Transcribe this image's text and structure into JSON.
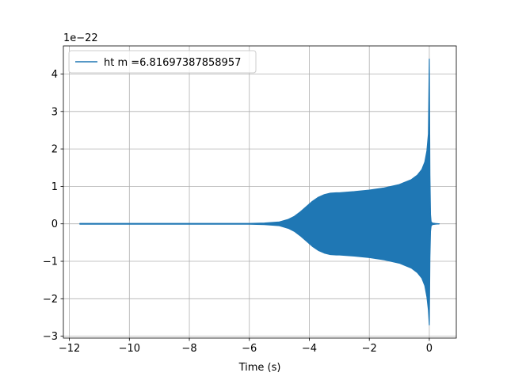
{
  "chart_data": {
    "type": "line",
    "title": "",
    "xlabel": "Time (s)",
    "ylabel": "",
    "y_scale_label": "1e−22",
    "xlim": [
      -12.2,
      0.9
    ],
    "ylim": [
      -3.05,
      4.75
    ],
    "x_ticks": [
      -12,
      -10,
      -8,
      -6,
      -4,
      -2,
      0
    ],
    "x_tick_labels": [
      "−12",
      "−10",
      "−8",
      "−6",
      "−4",
      "−2",
      "0"
    ],
    "y_ticks": [
      -3,
      -2,
      -1,
      0,
      1,
      2,
      3,
      4
    ],
    "y_tick_labels": [
      "−3",
      "−2",
      "−1",
      "0",
      "1",
      "2",
      "3",
      "4"
    ],
    "grid": true,
    "legend_position": "top-left",
    "series": [
      {
        "name": "ht m =6.81697387858957",
        "color": "#1f77b4",
        "x_range": [
          -11.65,
          0.33
        ],
        "upper_envelope": {
          "x": [
            -11.65,
            -6.0,
            -5.5,
            -5.0,
            -4.7,
            -4.5,
            -4.3,
            -4.1,
            -3.9,
            -3.7,
            -3.5,
            -3.3,
            -3.1,
            -3.0,
            -2.5,
            -2.0,
            -1.5,
            -1.0,
            -0.6,
            -0.4,
            -0.25,
            -0.15,
            -0.08,
            -0.03,
            0.0,
            0.02,
            0.04,
            0.06,
            0.1,
            0.2,
            0.33
          ],
          "y": [
            0.01,
            0.01,
            0.02,
            0.05,
            0.12,
            0.2,
            0.32,
            0.46,
            0.6,
            0.71,
            0.78,
            0.82,
            0.83,
            0.83,
            0.86,
            0.9,
            0.96,
            1.05,
            1.18,
            1.3,
            1.45,
            1.65,
            1.95,
            2.4,
            4.4,
            1.3,
            0.25,
            0.06,
            0.02,
            0.01,
            0.0
          ]
        },
        "lower_envelope": {
          "x": [
            -11.65,
            -6.0,
            -5.5,
            -5.0,
            -4.7,
            -4.5,
            -4.3,
            -4.1,
            -3.9,
            -3.7,
            -3.5,
            -3.3,
            -3.1,
            -3.0,
            -2.5,
            -2.0,
            -1.5,
            -1.0,
            -0.6,
            -0.4,
            -0.25,
            -0.15,
            -0.08,
            -0.03,
            0.0,
            0.02,
            0.04,
            0.06,
            0.1,
            0.2,
            0.33
          ],
          "y": [
            -0.01,
            -0.01,
            -0.02,
            -0.05,
            -0.12,
            -0.2,
            -0.32,
            -0.46,
            -0.6,
            -0.71,
            -0.78,
            -0.82,
            -0.83,
            -0.83,
            -0.86,
            -0.9,
            -0.96,
            -1.05,
            -1.18,
            -1.3,
            -1.45,
            -1.65,
            -1.95,
            -2.3,
            -2.7,
            -0.9,
            -0.2,
            -0.06,
            -0.02,
            -0.01,
            0.0
          ]
        }
      }
    ]
  }
}
